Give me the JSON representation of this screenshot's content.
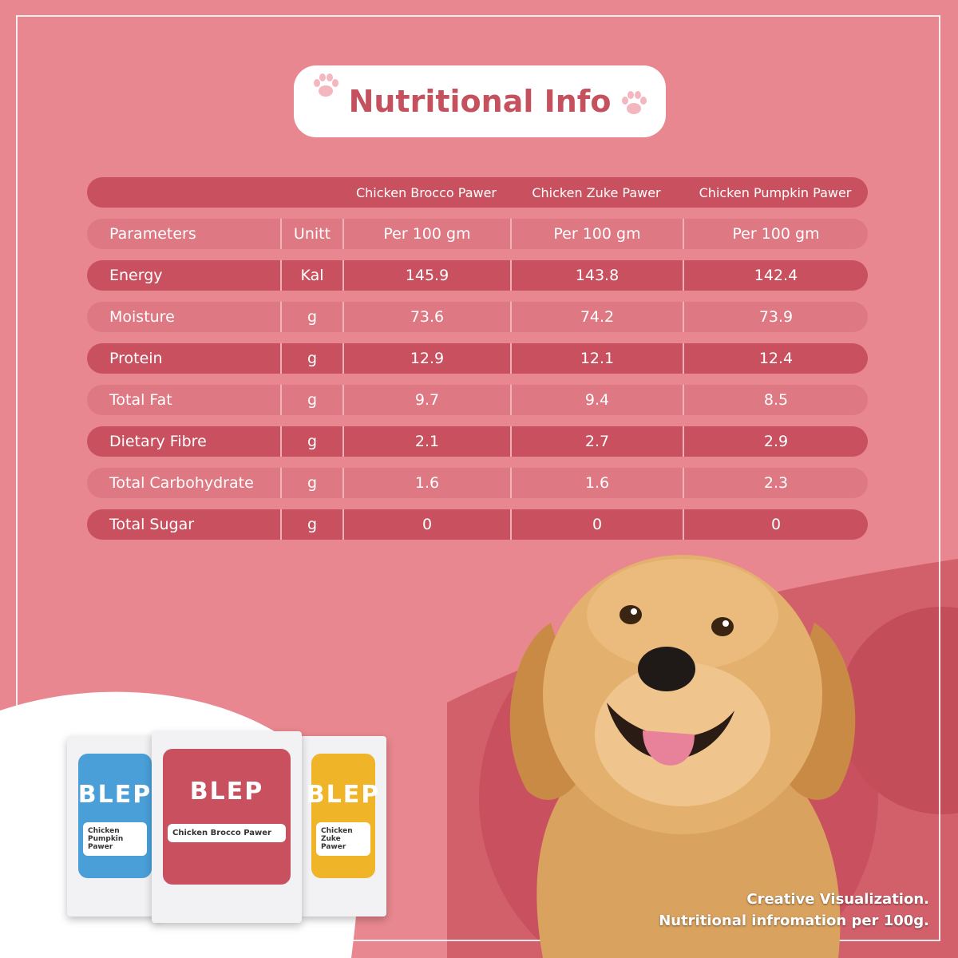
{
  "title": "Nutritional Info",
  "colors": {
    "background": "#e8878f",
    "row_dark": "#c9515f",
    "row_light": "#de7882",
    "title_text": "#c5505e"
  },
  "products": [
    "Chicken Brocco Pawer",
    "Chicken Zuke Pawer",
    "Chicken Pumpkin Pawer"
  ],
  "header": {
    "parameter": "Parameters",
    "unit": "Unitt",
    "per": [
      "Per 100 gm",
      "Per 100 gm",
      "Per 100 gm"
    ]
  },
  "rows": [
    {
      "name": "Energy",
      "unit": "Kal",
      "values": [
        "145.9",
        "143.8",
        "142.4"
      ]
    },
    {
      "name": "Moisture",
      "unit": "g",
      "values": [
        "73.6",
        "74.2",
        "73.9"
      ]
    },
    {
      "name": "Protein",
      "unit": "g",
      "values": [
        "12.9",
        "12.1",
        "12.4"
      ]
    },
    {
      "name": "Total Fat",
      "unit": "g",
      "values": [
        "9.7",
        "9.4",
        "8.5"
      ]
    },
    {
      "name": "Dietary Fibre",
      "unit": "g",
      "values": [
        "2.1",
        "2.7",
        "2.9"
      ]
    },
    {
      "name": "Total Carbohydrate",
      "unit": "g",
      "values": [
        "1.6",
        "1.6",
        "2.3"
      ]
    },
    {
      "name": "Total Sugar",
      "unit": "g",
      "values": [
        "0",
        "0",
        "0"
      ]
    }
  ],
  "packs": [
    {
      "brand": "BLEP",
      "name": "Chicken Pumpkin Pawer",
      "color": "#4a9fd8"
    },
    {
      "brand": "BLEP",
      "name": "Chicken Brocco Pawer",
      "color": "#c9515f"
    },
    {
      "brand": "BLEP",
      "name": "Chicken Zuke Pawer",
      "color": "#f0b429"
    }
  ],
  "caption": {
    "line1": "Creative Visualization.",
    "line2": "Nutritional infromation per 100g."
  },
  "icons": [
    "paw-icon",
    "dog-illustration"
  ]
}
